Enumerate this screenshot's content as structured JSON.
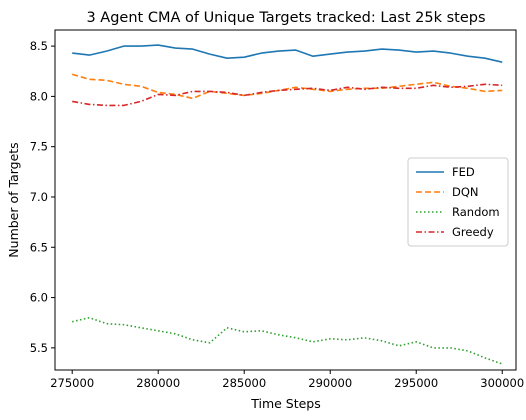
{
  "chart_data": {
    "type": "line",
    "title": "3 Agent CMA of Unique Targets tracked: Last 25k steps",
    "xlabel": "Time Steps",
    "ylabel": "Number of Targets",
    "xlim": [
      274000,
      300800
    ],
    "ylim": [
      5.28,
      8.66
    ],
    "xticks": [
      275000,
      280000,
      285000,
      290000,
      295000,
      300000
    ],
    "yticks": [
      5.5,
      6.0,
      6.5,
      7.0,
      7.5,
      8.0,
      8.5
    ],
    "xtick_labels": [
      "275000",
      "280000",
      "285000",
      "290000",
      "295000",
      "300000"
    ],
    "ytick_labels": [
      "5.5",
      "6.0",
      "6.5",
      "7.0",
      "7.5",
      "8.0",
      "8.5"
    ],
    "grid": false,
    "legend_position": "center-right",
    "x": [
      275000,
      276000,
      277000,
      278000,
      279000,
      280000,
      281000,
      282000,
      283000,
      284000,
      285000,
      286000,
      287000,
      288000,
      289000,
      290000,
      291000,
      292000,
      293000,
      294000,
      295000,
      296000,
      297000,
      298000,
      299000,
      300000
    ],
    "series": [
      {
        "name": "FED",
        "color": "#1f77b4",
        "dash": "solid",
        "values": [
          8.43,
          8.41,
          8.45,
          8.5,
          8.5,
          8.51,
          8.48,
          8.47,
          8.42,
          8.38,
          8.39,
          8.43,
          8.45,
          8.46,
          8.4,
          8.42,
          8.44,
          8.45,
          8.47,
          8.46,
          8.44,
          8.45,
          8.43,
          8.4,
          8.38,
          8.34
        ]
      },
      {
        "name": "DQN",
        "color": "#ff7f0e",
        "dash": "dashed",
        "values": [
          8.22,
          8.17,
          8.16,
          8.12,
          8.1,
          8.04,
          8.02,
          7.98,
          8.05,
          8.03,
          8.01,
          8.03,
          8.06,
          8.09,
          8.07,
          8.05,
          8.07,
          8.08,
          8.08,
          8.1,
          8.12,
          8.14,
          8.1,
          8.08,
          8.05,
          8.06
        ]
      },
      {
        "name": "Random",
        "color": "#2ca02c",
        "dash": "dotted",
        "values": [
          5.76,
          5.8,
          5.74,
          5.73,
          5.7,
          5.67,
          5.64,
          5.58,
          5.55,
          5.7,
          5.66,
          5.67,
          5.63,
          5.6,
          5.56,
          5.59,
          5.58,
          5.6,
          5.57,
          5.52,
          5.56,
          5.5,
          5.5,
          5.47,
          5.4,
          5.34
        ]
      },
      {
        "name": "Greedy",
        "color": "#d62728",
        "dash": "dashdot",
        "values": [
          7.95,
          7.92,
          7.91,
          7.91,
          7.95,
          8.02,
          8.01,
          8.05,
          8.05,
          8.04,
          8.01,
          8.04,
          8.06,
          8.07,
          8.08,
          8.06,
          8.09,
          8.07,
          8.09,
          8.08,
          8.08,
          8.11,
          8.09,
          8.1,
          8.12,
          8.11
        ]
      }
    ]
  }
}
